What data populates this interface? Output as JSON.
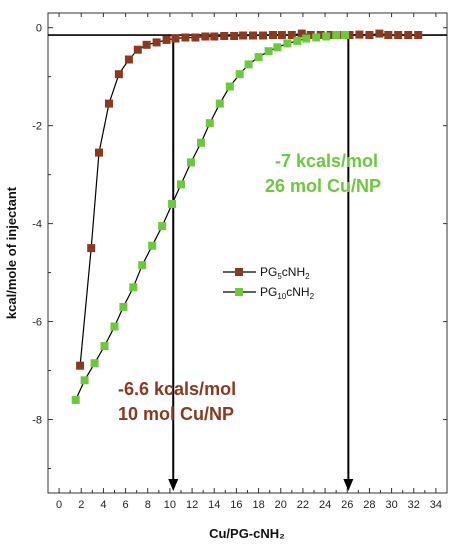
{
  "chart_data": {
    "type": "scatter",
    "title": "",
    "xlabel": "Cu/PG-cNH₂",
    "ylabel": "kcal/mole of injectant",
    "xlim": [
      -1,
      35
    ],
    "ylim": [
      -9.5,
      0.3
    ],
    "x_ticks": [
      0,
      2,
      4,
      6,
      8,
      10,
      12,
      14,
      16,
      18,
      20,
      22,
      24,
      26,
      28,
      30,
      32,
      34
    ],
    "y_ticks": [
      0,
      -2,
      -4,
      -6,
      -8
    ],
    "grid": false,
    "legend_position": "center-right",
    "series": [
      {
        "name": "PG5cNH2",
        "legend_base": "PG",
        "legend_sub": "5",
        "legend_rest": "cNH",
        "legend_sub2": "2",
        "color": "#8B3A1F",
        "x": [
          1.9,
          2.9,
          3.6,
          4.5,
          5.4,
          6.3,
          7.1,
          7.9,
          8.8,
          9.7,
          10.5,
          11.4,
          12.3,
          13.2,
          14.0,
          14.9,
          15.8,
          16.6,
          17.5,
          18.4,
          19.3,
          20.1,
          21.0,
          21.9,
          22.7,
          23.6,
          24.5,
          25.4,
          26.2,
          27.1,
          28.0,
          28.9,
          29.7,
          30.6,
          31.5,
          32.4
        ],
        "y": [
          -6.9,
          -4.5,
          -2.55,
          -1.55,
          -0.95,
          -0.65,
          -0.45,
          -0.35,
          -0.3,
          -0.25,
          -0.22,
          -0.2,
          -0.2,
          -0.18,
          -0.18,
          -0.17,
          -0.17,
          -0.16,
          -0.16,
          -0.16,
          -0.15,
          -0.15,
          -0.15,
          -0.12,
          -0.15,
          -0.15,
          -0.15,
          -0.15,
          -0.15,
          -0.14,
          -0.15,
          -0.12,
          -0.15,
          -0.15,
          -0.15,
          -0.15
        ]
      },
      {
        "name": "PG10cNH2",
        "legend_base": "PG",
        "legend_sub": "10",
        "legend_rest": "cNH",
        "legend_sub2": "2",
        "color": "#6CC83C",
        "x": [
          1.5,
          2.3,
          3.2,
          4.1,
          5.0,
          5.8,
          6.7,
          7.5,
          8.4,
          9.3,
          10.2,
          11.0,
          11.9,
          12.8,
          13.6,
          14.5,
          15.4,
          16.3,
          17.1,
          18.0,
          18.9,
          19.7,
          20.6,
          21.5,
          22.3,
          23.2,
          24.1,
          25.0,
          25.8
        ],
        "y": [
          -7.6,
          -7.2,
          -6.85,
          -6.5,
          -6.1,
          -5.7,
          -5.3,
          -4.85,
          -4.45,
          -4.05,
          -3.6,
          -3.2,
          -2.75,
          -2.35,
          -1.95,
          -1.55,
          -1.2,
          -0.95,
          -0.75,
          -0.6,
          -0.48,
          -0.4,
          -0.32,
          -0.27,
          -0.22,
          -0.2,
          -0.18,
          -0.15,
          -0.15
        ]
      }
    ],
    "vertical_markers": [
      10.3,
      26.1
    ],
    "horizontal_line_y": -0.15,
    "annotations": [
      {
        "line1": "-7 kcals/mol",
        "line2": "26 mol Cu/NP",
        "color": "#6CC83C"
      },
      {
        "line1": "-6.6 kcals/mol",
        "line2": "10 mol Cu/NP",
        "color": "#8B3A1F"
      }
    ]
  }
}
